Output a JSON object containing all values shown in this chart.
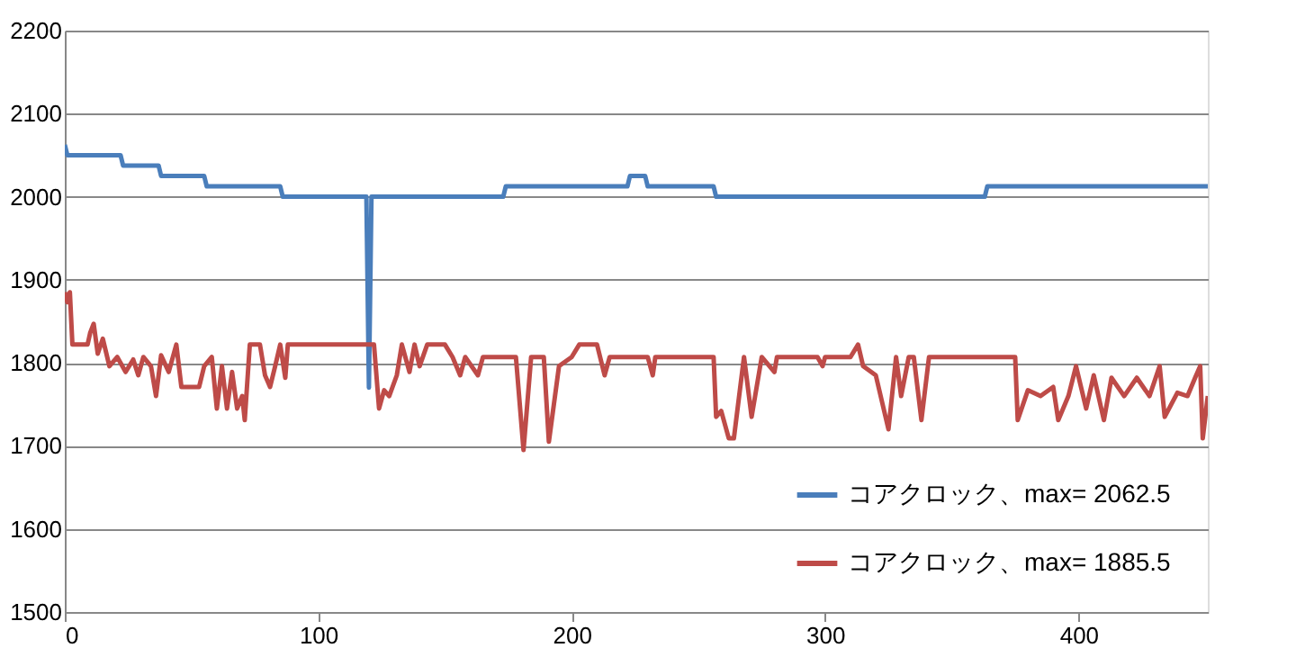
{
  "chart_data": {
    "type": "line",
    "xlim": [
      0,
      451
    ],
    "xticks": [
      0,
      100,
      200,
      300,
      400
    ],
    "ylim": [
      1500,
      2200
    ],
    "yticks": [
      1500,
      1600,
      1700,
      1800,
      1900,
      2000,
      2100,
      2200
    ],
    "grid": "y",
    "legend": "bottom right",
    "marker": "none",
    "line_style": "solid",
    "series": [
      {
        "name": "コアクロック、max= 2062.5",
        "color": "#4a7ebb",
        "x": [
          0,
          1,
          22,
          23,
          37,
          38,
          55,
          56,
          85,
          86,
          119,
          120,
          121,
          173,
          174,
          222,
          223,
          229,
          230,
          256,
          257,
          363,
          364,
          451
        ],
        "values": [
          2062.5,
          2050,
          2050,
          2037.5,
          2037.5,
          2025,
          2025,
          2012.5,
          2012.5,
          2000,
          2000,
          1770,
          2000,
          2000,
          2012.5,
          2012.5,
          2025,
          2025,
          2012.5,
          2012.5,
          2000,
          2000,
          2012.5,
          2012.5
        ]
      },
      {
        "name": "コアクロック、max= 1885.5",
        "color": "#be4b48",
        "x": [
          0,
          1,
          2,
          3,
          9,
          10,
          11.4,
          13,
          15,
          17.6,
          20.7,
          24,
          27,
          29,
          31,
          34,
          36,
          38,
          41,
          44,
          46,
          49,
          53,
          55,
          58,
          60,
          62,
          64,
          66,
          68,
          70,
          71,
          73,
          77,
          79,
          81,
          83,
          85,
          87,
          88,
          122,
          124,
          126,
          128,
          131,
          133,
          136,
          138,
          140,
          143,
          150,
          153,
          156,
          158,
          163,
          165,
          178,
          181,
          184,
          189,
          191,
          195,
          200,
          203,
          210,
          213,
          215,
          230,
          232,
          233,
          256,
          257,
          259,
          262,
          264,
          268,
          271,
          275,
          280,
          281,
          297,
          299,
          300,
          310,
          313,
          315,
          320,
          325,
          328,
          330,
          333,
          335,
          338,
          341,
          345,
          375,
          376,
          380,
          385,
          390,
          392,
          396,
          399,
          403,
          406,
          410,
          413,
          418,
          423,
          428,
          432,
          434,
          439,
          443,
          446,
          448,
          449,
          451
        ],
        "values": [
          1885,
          1873,
          1885,
          1822,
          1822,
          1836,
          1847,
          1811,
          1829,
          1796,
          1807,
          1789,
          1804,
          1785,
          1807,
          1796,
          1760,
          1809,
          1789,
          1822,
          1771,
          1771,
          1771,
          1796,
          1807,
          1745,
          1796,
          1745,
          1789,
          1745,
          1760,
          1731,
          1822,
          1822,
          1785,
          1771,
          1796,
          1822,
          1782,
          1822,
          1822,
          1745,
          1767,
          1760,
          1785,
          1822,
          1789,
          1822,
          1796,
          1822,
          1822,
          1807,
          1785,
          1807,
          1785,
          1807,
          1807,
          1695,
          1807,
          1807,
          1705,
          1796,
          1807,
          1822,
          1822,
          1785,
          1807,
          1807,
          1785,
          1807,
          1807,
          1735,
          1742,
          1709,
          1709,
          1807,
          1735,
          1807,
          1789,
          1807,
          1807,
          1796,
          1807,
          1807,
          1822,
          1796,
          1785,
          1720,
          1807,
          1760,
          1807,
          1807,
          1731,
          1807,
          1807,
          1807,
          1731,
          1767,
          1760,
          1771,
          1731,
          1760,
          1796,
          1745,
          1785,
          1731,
          1782,
          1760,
          1782,
          1760,
          1796,
          1735,
          1764,
          1760,
          1782,
          1796,
          1709,
          1760
        ]
      }
    ]
  }
}
